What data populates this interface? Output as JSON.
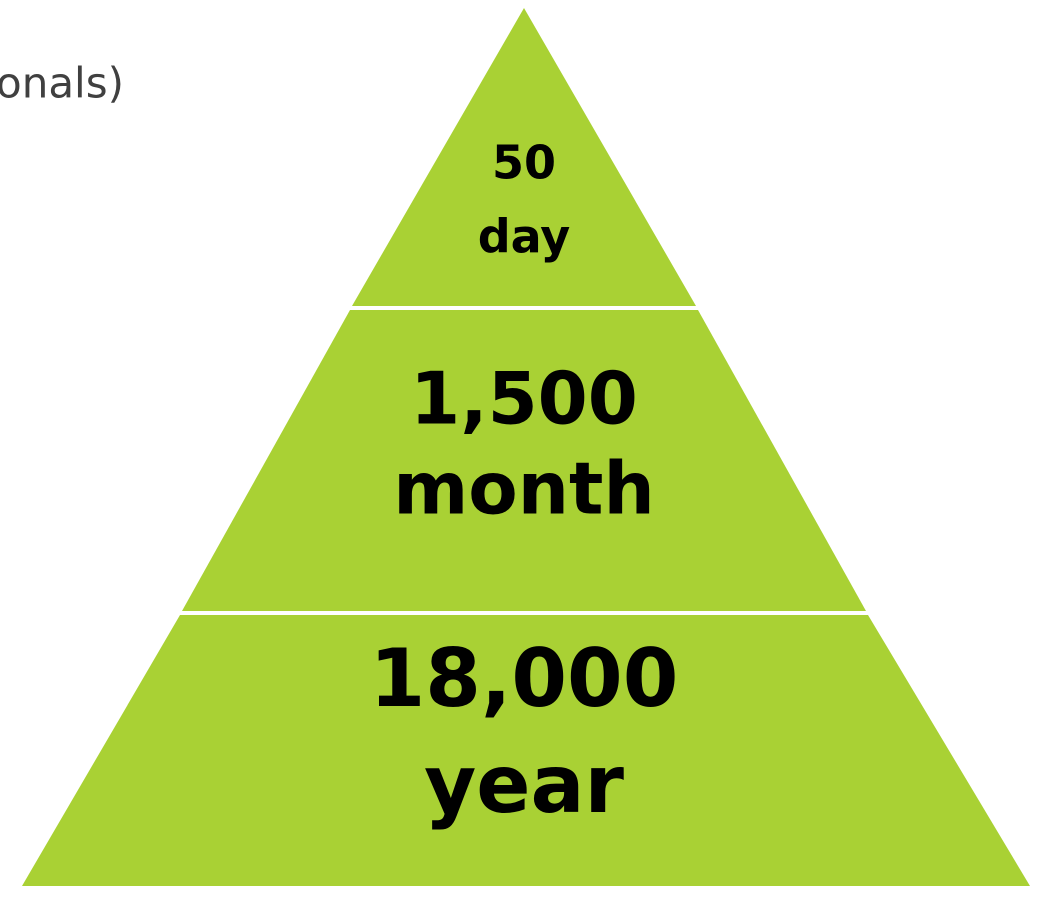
{
  "caption": "onals)",
  "tiers": [
    {
      "number": "50",
      "unit": "day"
    },
    {
      "number": "1,500",
      "unit": "month"
    },
    {
      "number": "18,000",
      "unit": "year"
    }
  ]
}
